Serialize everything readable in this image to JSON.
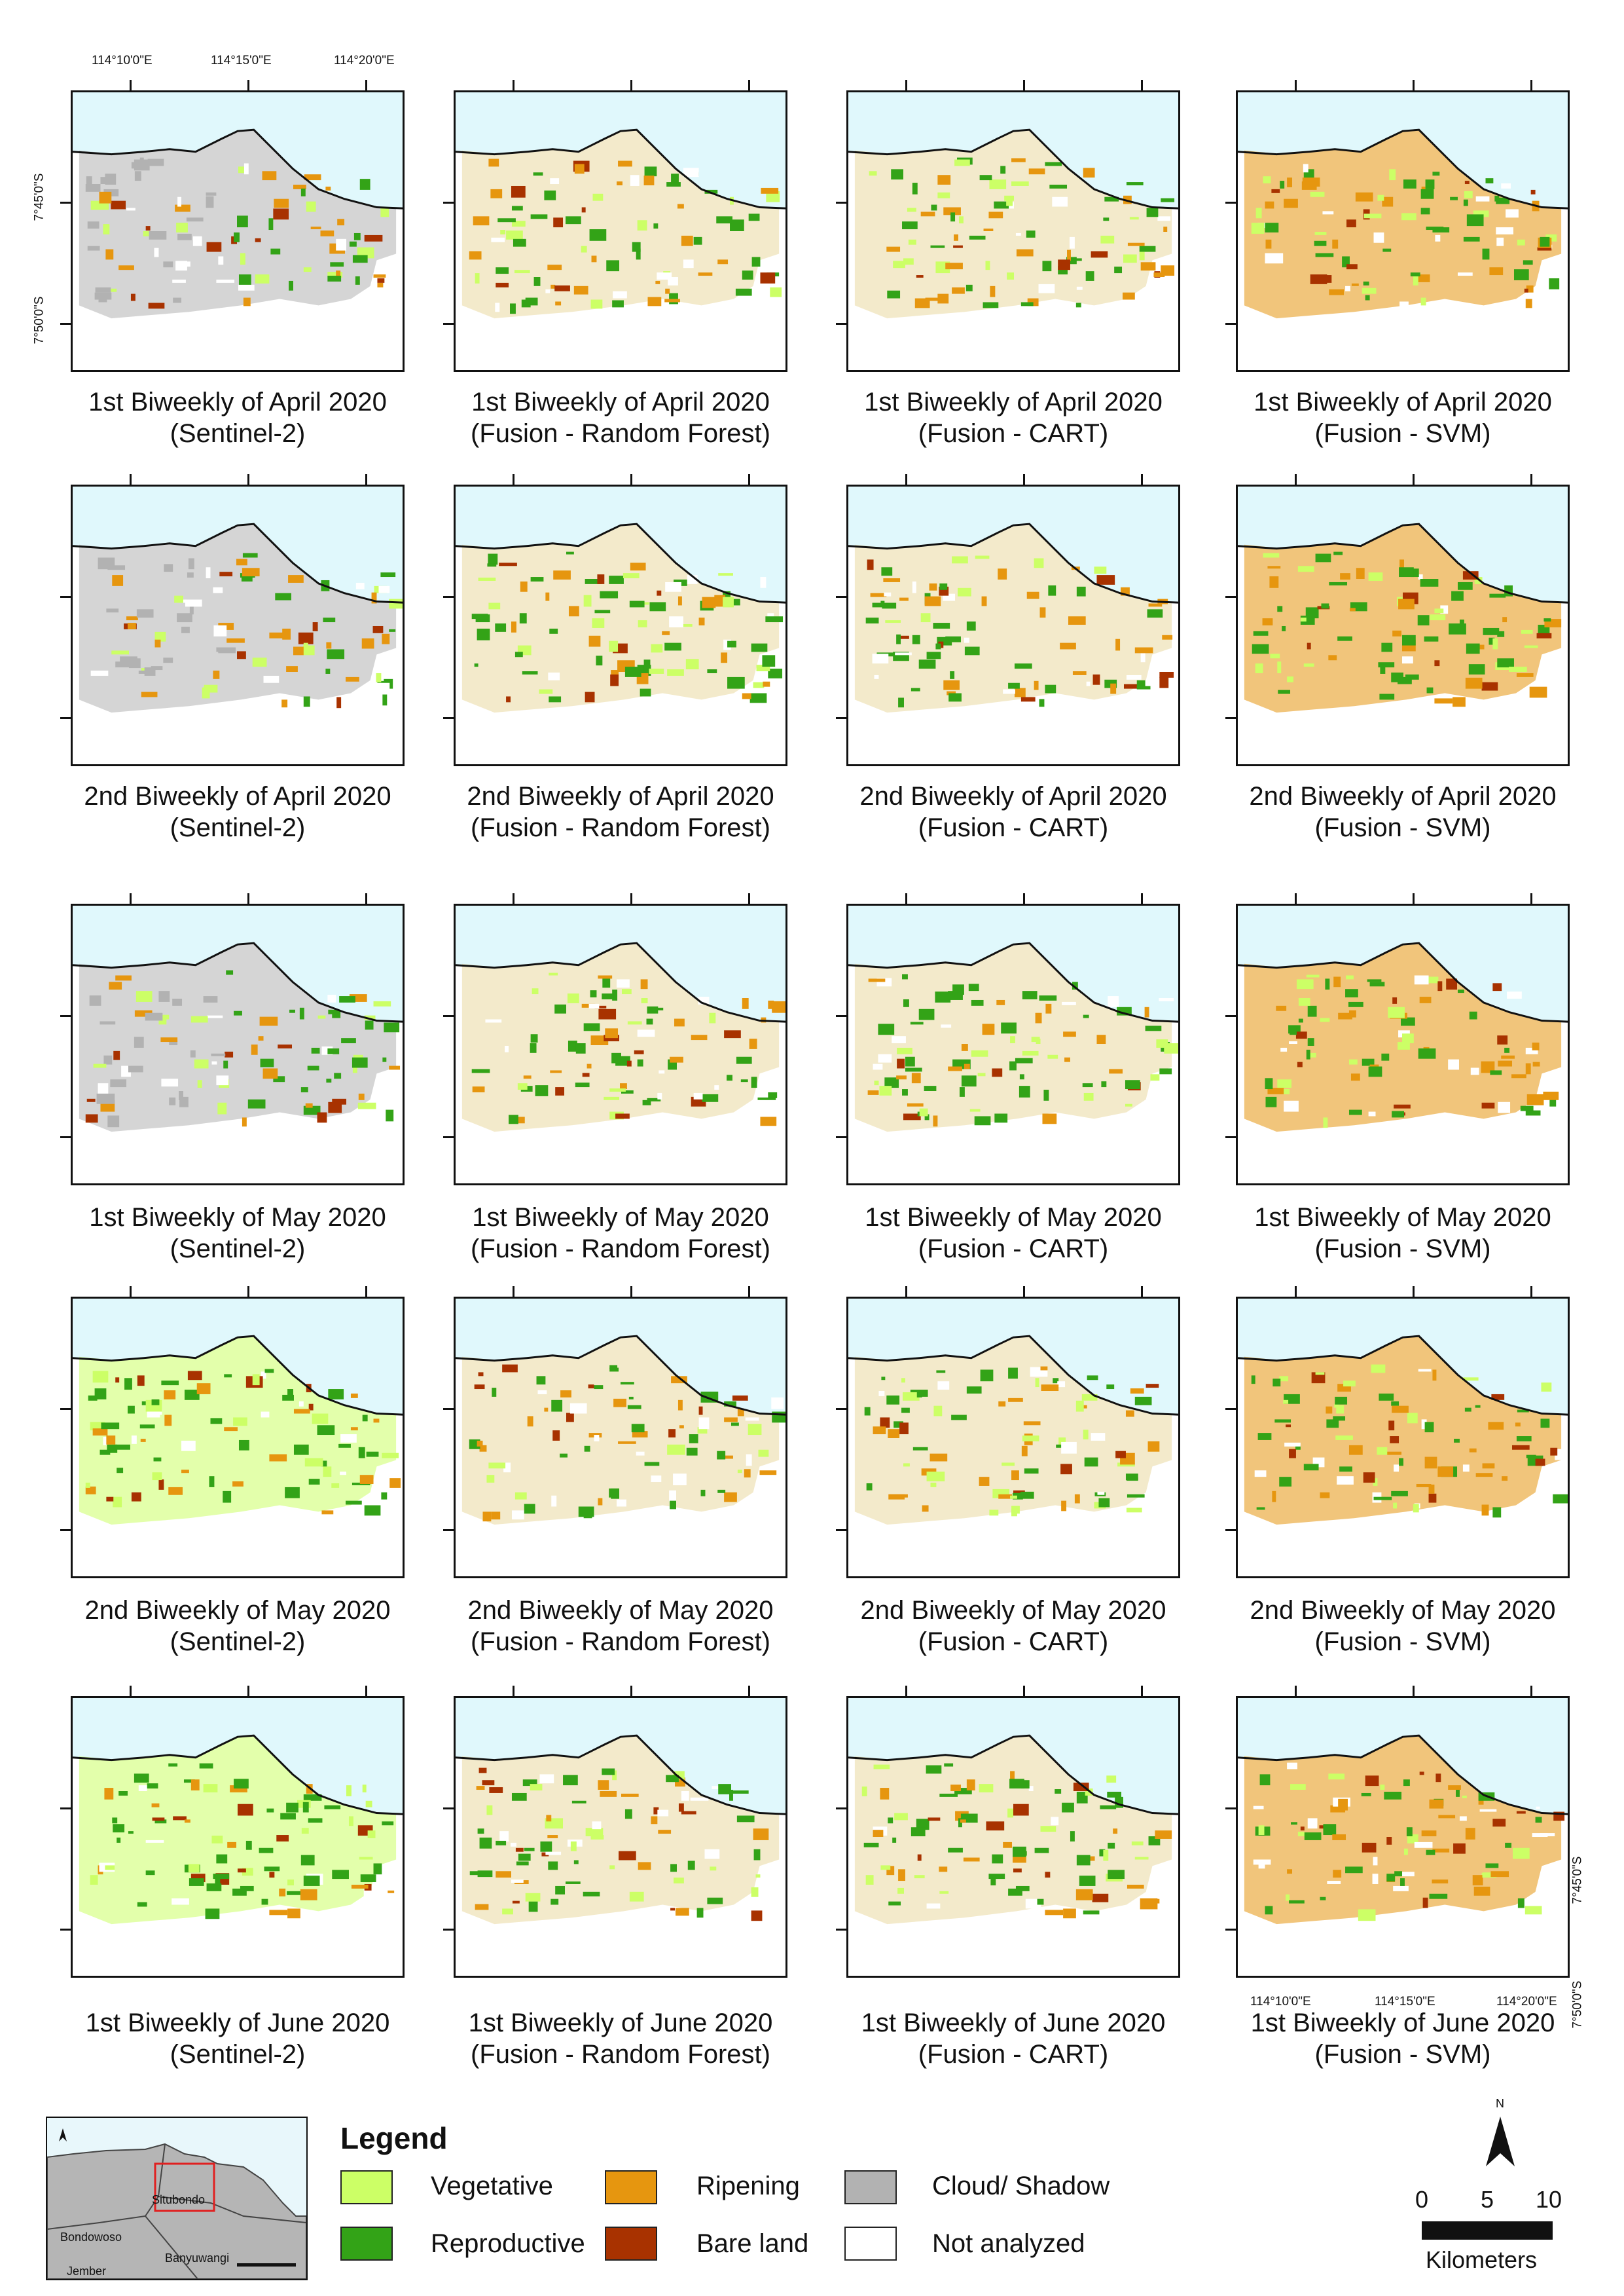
{
  "coords": {
    "lon_labels": [
      "114°10'0\"E",
      "114°15'0\"E",
      "114°20'0\"E"
    ],
    "lat_labels": [
      "7°45'0\"S",
      "7°50'0\"S"
    ]
  },
  "captions": [
    [
      "1st Biweekly of April 2020",
      "(Sentinel-2)",
      "1st Biweekly of April 2020",
      "(Fusion - Random Forest)",
      "1st Biweekly of April 2020",
      "(Fusion - CART)",
      "1st Biweekly of April 2020",
      "(Fusion - SVM)"
    ],
    [
      "2nd Biweekly of April 2020",
      "(Sentinel-2)",
      "2nd Biweekly of April 2020",
      "(Fusion - Random Forest)",
      "2nd Biweekly of April 2020",
      "(Fusion - CART)",
      "2nd Biweekly of April 2020",
      "(Fusion - SVM)"
    ],
    [
      "1st Biweekly of May 2020",
      "(Sentinel-2)",
      "1st Biweekly of May 2020",
      "(Fusion - Random Forest)",
      "1st Biweekly of May 2020",
      "(Fusion - CART)",
      "1st Biweekly of May 2020",
      "(Fusion - SVM)"
    ],
    [
      "2nd Biweekly of May 2020",
      "(Sentinel-2)",
      "2nd Biweekly of May 2020",
      "(Fusion - Random Forest)",
      "2nd Biweekly of May 2020",
      "(Fusion - CART)",
      "2nd Biweekly of May 2020",
      "(Fusion - SVM)"
    ],
    [
      "1st Biweekly of June 2020",
      "(Sentinel-2)",
      "1st Biweekly of June 2020",
      "(Fusion - Random Forest)",
      "1st Biweekly of June 2020",
      "(Fusion - CART)",
      "1st Biweekly of June 2020",
      "(Fusion - SVM)"
    ]
  ],
  "legend": {
    "title": "Legend",
    "items": [
      {
        "label": "Vegetative",
        "color": "#ccff66"
      },
      {
        "label": "Reproductive",
        "color": "#33a317"
      },
      {
        "label": "Ripening",
        "color": "#e6960f"
      },
      {
        "label": "Bare land",
        "color": "#a83200"
      },
      {
        "label": "Cloud/ Shadow",
        "color": "#b2b2b2"
      },
      {
        "label": "Not analyzed",
        "color": "#ffffff"
      }
    ]
  },
  "inset": {
    "labels": [
      "Situbondo",
      "Bondowoso",
      "Banyuwangi",
      "Jember"
    ]
  },
  "scale_bar": {
    "ticks": [
      "0",
      "5",
      "10"
    ],
    "unit": "Kilometers",
    "north": "N"
  },
  "colors": {
    "sea": "#e0f8fc",
    "coast": "#111111",
    "inset_land": "#b5b5b5",
    "inset_highlight": "#e02020"
  }
}
